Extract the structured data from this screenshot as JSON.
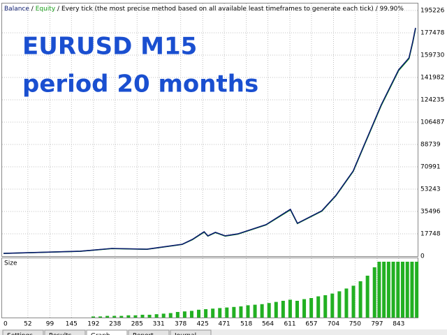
{
  "chart_data": {
    "type": "line",
    "header": {
      "info": "Every tick (the most precise method based on all available least timeframes to generate each tick)",
      "quality": "99.90%",
      "separator": "/"
    },
    "annotations": [
      "EURUSD M15",
      "period 20 months"
    ],
    "series": [
      {
        "name": "Balance",
        "color": "#0a1a6e",
        "x": [
          0,
          164,
          231,
          306,
          381,
          403,
          428,
          436,
          452,
          473,
          500,
          560,
          612,
          627,
          679,
          709,
          746,
          768,
          806,
          843,
          865,
          873,
          879
        ],
        "values": [
          2200,
          3900,
          6100,
          5500,
          9400,
          13300,
          19400,
          16100,
          18900,
          16100,
          17700,
          25000,
          37200,
          26100,
          36000,
          48200,
          67700,
          87100,
          120400,
          148100,
          157500,
          170300,
          181400
        ]
      },
      {
        "name": "Equity",
        "color": "#1aa01a",
        "x": [
          0,
          164,
          231,
          306,
          381,
          403,
          428,
          436,
          452,
          473,
          500,
          560,
          612,
          627,
          679,
          709,
          746,
          768,
          806,
          843,
          865,
          873,
          879
        ],
        "values": [
          2150,
          3850,
          6000,
          5450,
          9300,
          13100,
          19100,
          15900,
          18700,
          15900,
          17500,
          24800,
          36800,
          25900,
          35700,
          47900,
          67300,
          86600,
          119800,
          147500,
          156900,
          169600,
          180800
        ]
      }
    ],
    "xlim": [
      0,
      888
    ],
    "xticks": [
      0,
      52,
      99,
      145,
      192,
      238,
      285,
      331,
      378,
      425,
      471,
      518,
      564,
      611,
      657,
      704,
      750,
      797,
      843
    ],
    "ylim": [
      0,
      195226
    ],
    "yticks": [
      0,
      17748,
      35496,
      53243,
      70991,
      88739,
      106487,
      124235,
      141982,
      159730,
      177478,
      195226
    ],
    "grid": true,
    "size_panel": {
      "type": "bar",
      "label": "Size",
      "color": "#22b022",
      "ylim": [
        0,
        1
      ],
      "x": [
        190,
        205,
        220,
        235,
        250,
        265,
        280,
        295,
        310,
        325,
        340,
        355,
        370,
        385,
        400,
        415,
        430,
        445,
        460,
        475,
        490,
        505,
        520,
        535,
        550,
        565,
        580,
        595,
        610,
        625,
        640,
        655,
        670,
        685,
        700,
        715,
        730,
        745,
        760,
        775,
        790,
        800,
        810,
        820,
        830,
        840,
        850,
        860,
        870,
        880
      ],
      "values": [
        0.02,
        0.02,
        0.03,
        0.03,
        0.03,
        0.04,
        0.04,
        0.05,
        0.05,
        0.06,
        0.07,
        0.08,
        0.1,
        0.11,
        0.12,
        0.14,
        0.15,
        0.16,
        0.17,
        0.18,
        0.19,
        0.2,
        0.22,
        0.23,
        0.24,
        0.26,
        0.28,
        0.3,
        0.32,
        0.3,
        0.33,
        0.35,
        0.38,
        0.4,
        0.43,
        0.47,
        0.52,
        0.57,
        0.65,
        0.75,
        0.9,
        1,
        1,
        1,
        1,
        1,
        1,
        1,
        1,
        1
      ]
    },
    "tabs": [
      "Settings",
      "Results",
      "Graph",
      "Report",
      "Journal"
    ]
  }
}
